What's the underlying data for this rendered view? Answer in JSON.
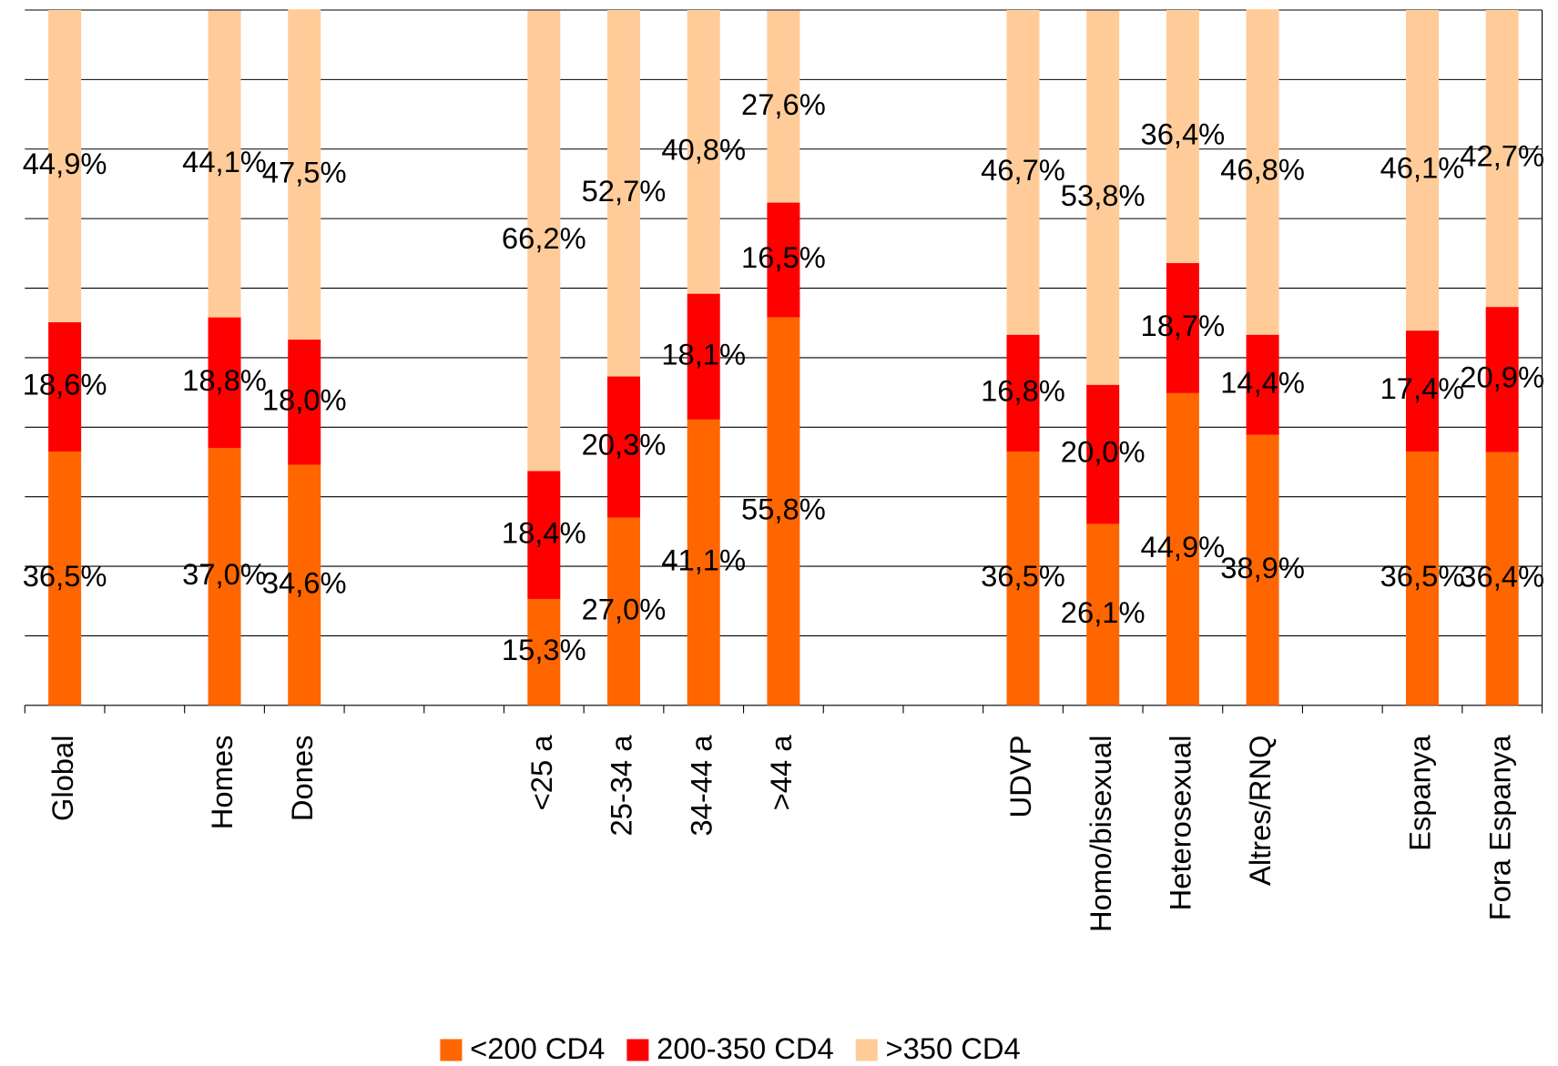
{
  "chart_data": {
    "type": "stacked_bar",
    "categories": [
      "Global",
      null,
      "Homes",
      "Dones",
      null,
      null,
      "<25 a",
      "25-34 a",
      "34-44 a",
      ">44 a",
      null,
      null,
      "UDVP",
      "Homo/bisexual",
      "Heterosexual",
      "Altres/RNQ",
      null,
      "Espanya",
      "Fora Espanya"
    ],
    "series": [
      {
        "name": "<200 CD4",
        "color": "#ff6600",
        "values": [
          36.5,
          null,
          37.0,
          34.6,
          null,
          null,
          15.3,
          27.0,
          41.1,
          55.8,
          null,
          null,
          36.5,
          26.1,
          44.9,
          38.9,
          null,
          36.5,
          36.4
        ],
        "value_labels": [
          "36,5%",
          null,
          "37,0%",
          "34,6%",
          null,
          null,
          "15,3%",
          "27,0%",
          "41,1%",
          "55,8%",
          null,
          null,
          "36,5%",
          "26,1%",
          "44,9%",
          "38,9%",
          null,
          "36,5%",
          "36,4%"
        ]
      },
      {
        "name": "200-350 CD4",
        "color": "#ff0000",
        "values": [
          18.6,
          null,
          18.8,
          18.0,
          null,
          null,
          18.4,
          20.3,
          18.1,
          16.5,
          null,
          null,
          16.8,
          20.0,
          18.7,
          14.4,
          null,
          17.4,
          20.9
        ],
        "value_labels": [
          "18,6%",
          null,
          "18,8%",
          "18,0%",
          null,
          null,
          "18,4%",
          "20,3%",
          "18,1%",
          "16,5%",
          null,
          null,
          "16,8%",
          "20,0%",
          "18,7%",
          "14,4%",
          null,
          "17,4%",
          "20,9%"
        ]
      },
      {
        "name": ">350 CD4",
        "color": "#ffcc99",
        "values": [
          44.9,
          null,
          44.1,
          47.5,
          null,
          null,
          66.2,
          52.7,
          40.8,
          27.6,
          null,
          null,
          46.7,
          53.8,
          36.4,
          46.8,
          null,
          46.1,
          42.7
        ],
        "value_labels": [
          "44,9%",
          null,
          "44,1%",
          "47,5%",
          null,
          null,
          "66,2%",
          "52,7%",
          "40,8%",
          "27,6%",
          null,
          null,
          "46,7%",
          "53,8%",
          "36,4%",
          "46,8%",
          null,
          "46,1%",
          "42,7%"
        ]
      }
    ],
    "ylim": [
      0,
      100
    ],
    "yticks": [
      0,
      10,
      20,
      30,
      40,
      50,
      60,
      70,
      80,
      90,
      100
    ],
    "grid": true,
    "legend": "bottom"
  }
}
